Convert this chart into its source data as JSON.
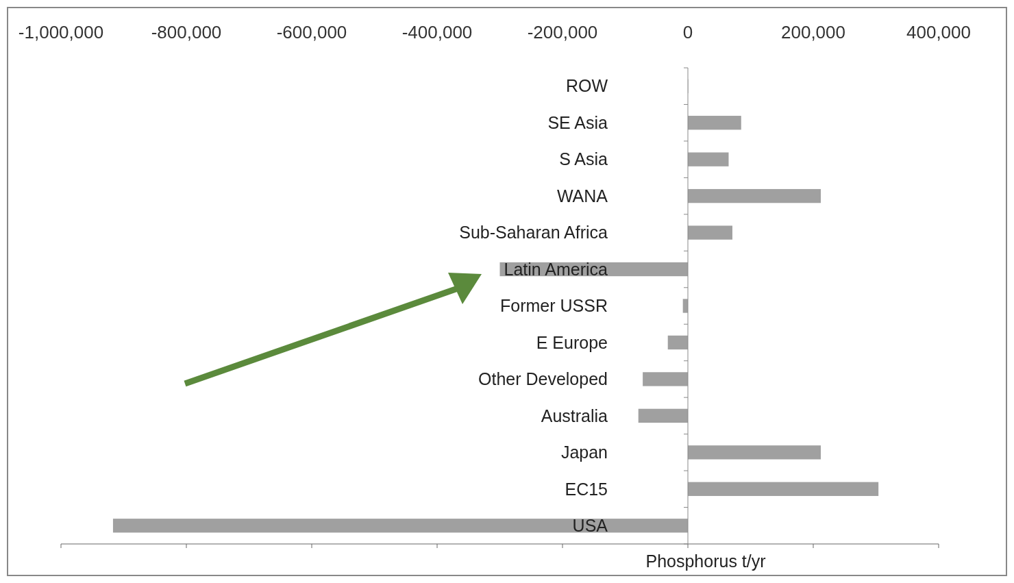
{
  "chart_data": {
    "type": "bar",
    "orientation": "horizontal",
    "xlabel": "Phosphorus t/yr",
    "categories": [
      "ROW",
      "SE Asia",
      "S Asia",
      "WANA",
      "Sub-Saharan Africa",
      "Latin America",
      "Former USSR",
      "E Europe",
      "Other Developed",
      "Australia",
      "Japan",
      "EC15",
      "USA"
    ],
    "values": [
      0,
      85000,
      65000,
      212000,
      71000,
      -300000,
      -8000,
      -32000,
      -72000,
      -79000,
      212000,
      304000,
      -917000
    ],
    "color": "#a0a0a0",
    "xlim": [
      -1000000,
      400000
    ],
    "xticks": [
      {
        "value": -1000000,
        "label": "-1,000,000"
      },
      {
        "value": -800000,
        "label": "-800,000"
      },
      {
        "value": -600000,
        "label": "-600,000"
      },
      {
        "value": -400000,
        "label": "-400,000"
      },
      {
        "value": -200000,
        "label": "-200,000"
      },
      0,
      {
        "value": 200000,
        "label": "200,000"
      },
      {
        "value": 400000,
        "label": "400,000"
      }
    ]
  }
}
